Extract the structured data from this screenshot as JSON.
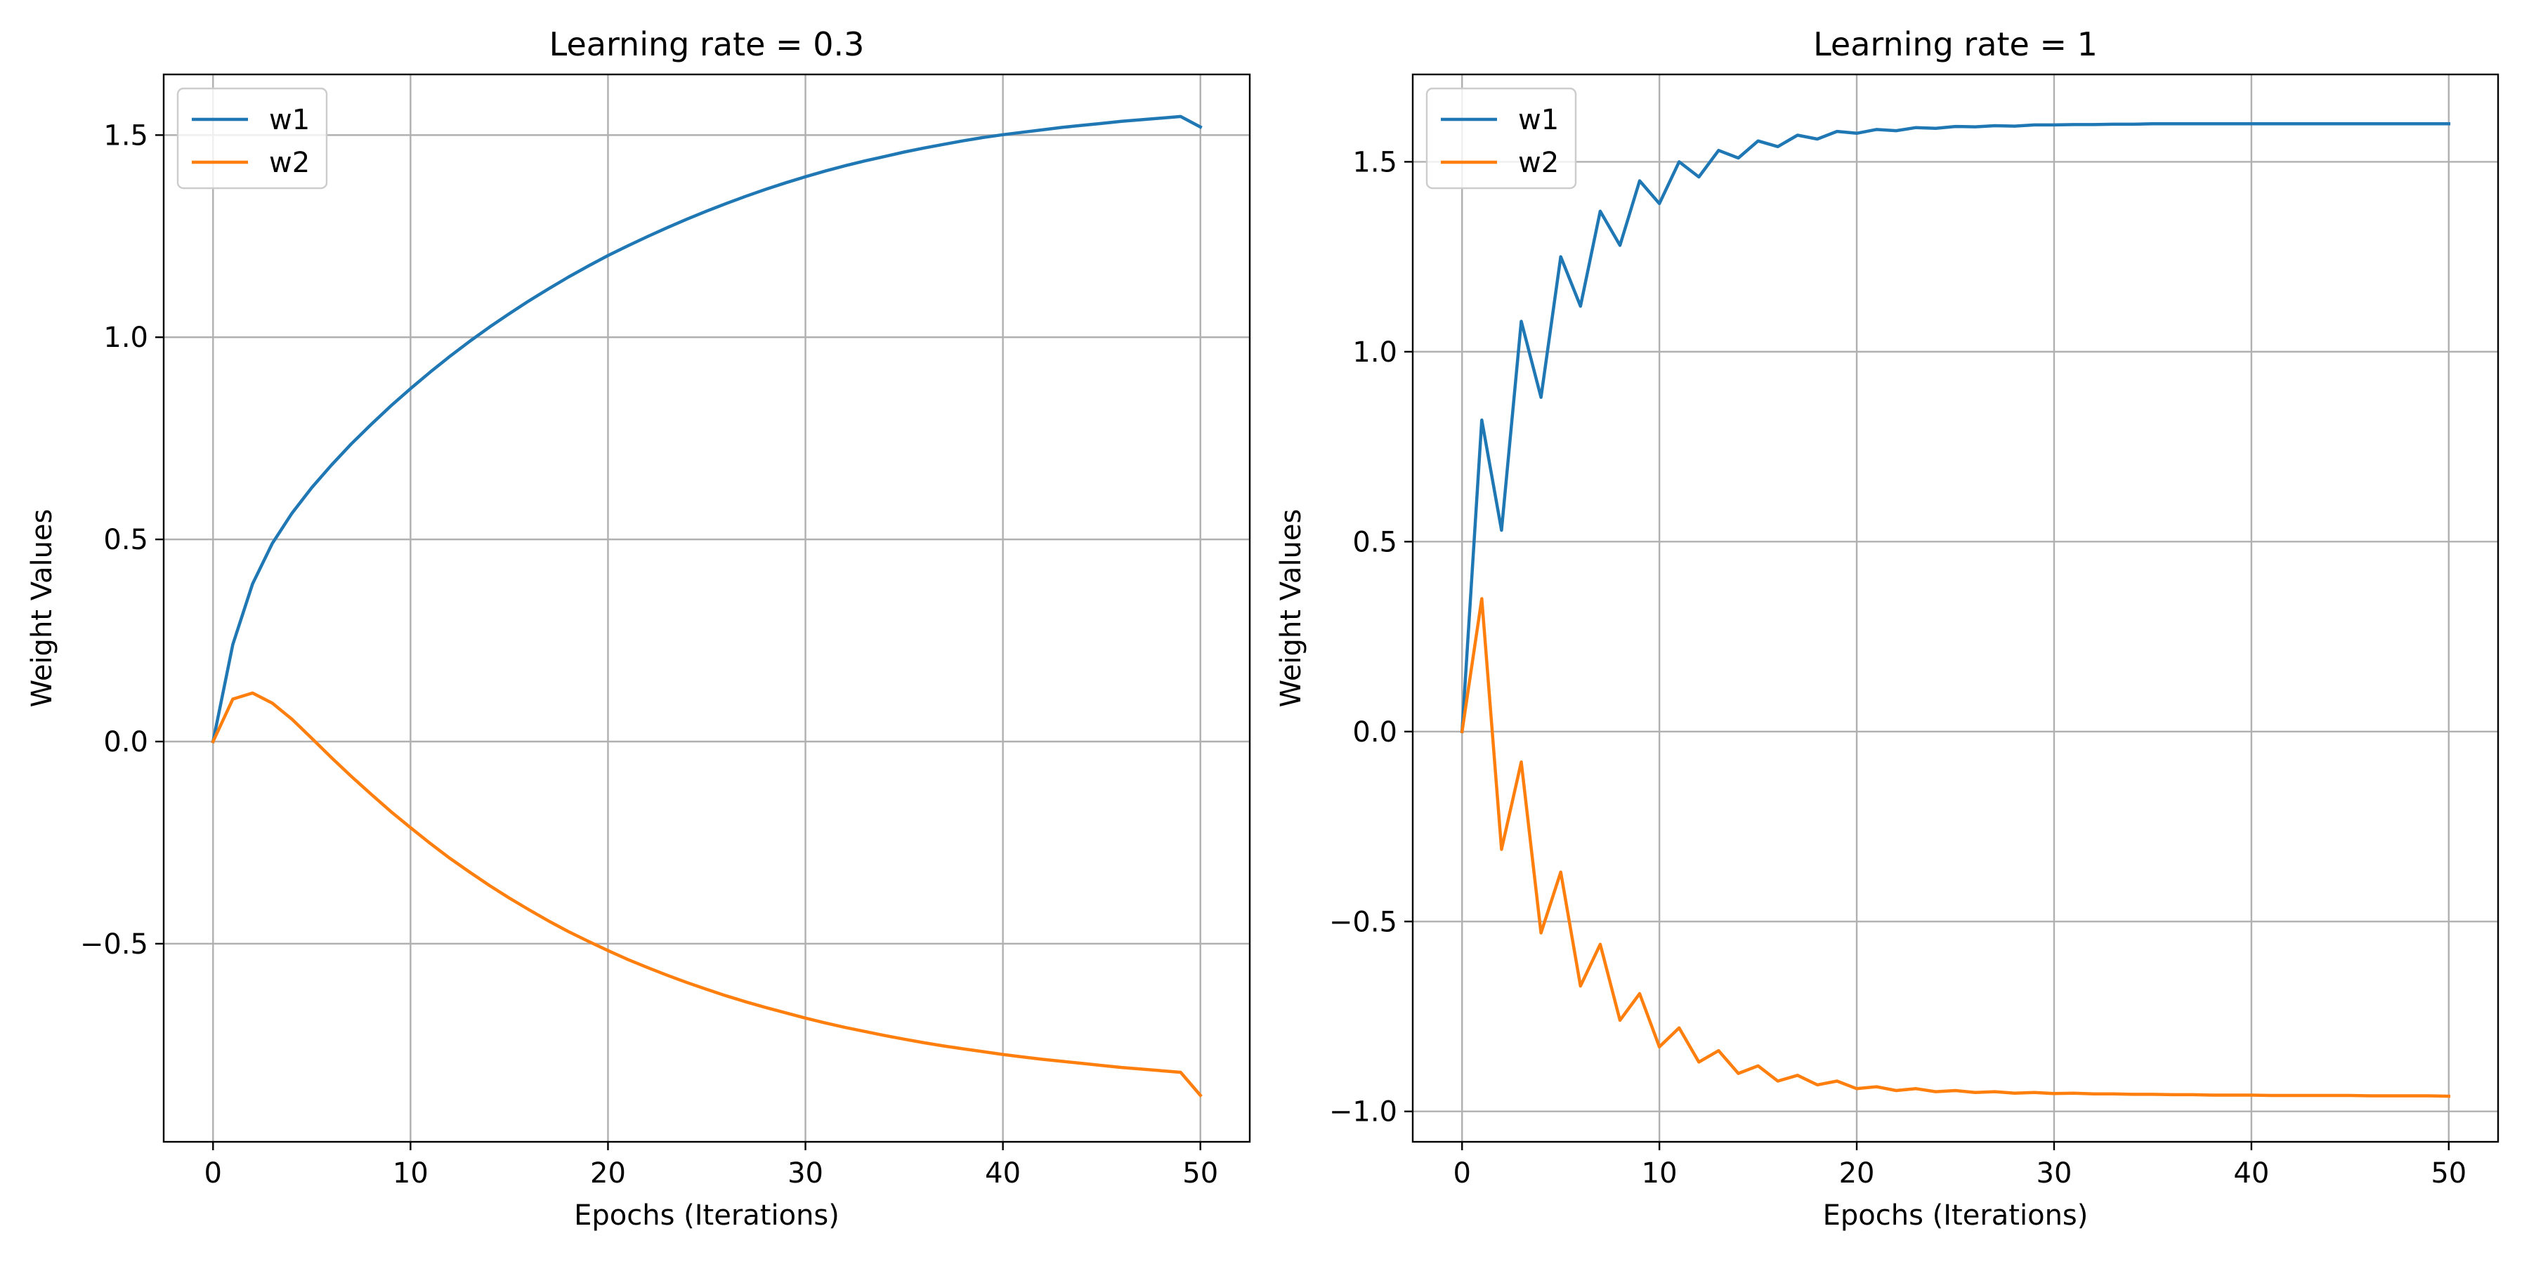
{
  "chart_data": [
    {
      "type": "line",
      "title": "Learning rate = 0.3",
      "xlabel": "Epochs (Iterations)",
      "ylabel": "Weight Values",
      "xlim": [
        -2.5,
        52.5
      ],
      "ylim": [
        -0.99,
        1.65
      ],
      "xticks": [
        0,
        10,
        20,
        30,
        40,
        50
      ],
      "xtick_labels": [
        "0",
        "10",
        "20",
        "30",
        "40",
        "50"
      ],
      "yticks": [
        -0.5,
        0.0,
        0.5,
        1.0,
        1.5
      ],
      "ytick_labels": [
        "−0.5",
        "0.0",
        "0.5",
        "1.0",
        "1.5"
      ],
      "grid": true,
      "legend_position": "top-left",
      "x": [
        0,
        1,
        2,
        3,
        4,
        5,
        6,
        7,
        8,
        9,
        10,
        11,
        12,
        13,
        14,
        15,
        16,
        17,
        18,
        19,
        20,
        21,
        22,
        23,
        24,
        25,
        26,
        27,
        28,
        29,
        30,
        31,
        32,
        33,
        34,
        35,
        36,
        37,
        38,
        39,
        40,
        41,
        42,
        43,
        44,
        45,
        46,
        47,
        48,
        49,
        50
      ],
      "series": [
        {
          "name": "w1",
          "color": "#1f77b4",
          "values": [
            0.0,
            0.24,
            0.39,
            0.49,
            0.565,
            0.628,
            0.684,
            0.736,
            0.784,
            0.83,
            0.873,
            0.914,
            0.953,
            0.99,
            1.025,
            1.058,
            1.09,
            1.12,
            1.149,
            1.176,
            1.202,
            1.226,
            1.249,
            1.271,
            1.292,
            1.312,
            1.331,
            1.349,
            1.366,
            1.382,
            1.397,
            1.411,
            1.424,
            1.436,
            1.447,
            1.458,
            1.468,
            1.477,
            1.486,
            1.494,
            1.501,
            1.507,
            1.513,
            1.519,
            1.524,
            1.529,
            1.534,
            1.538,
            1.542,
            1.546,
            1.52
          ]
        },
        {
          "name": "w2",
          "color": "#ff7f0e",
          "values": [
            0.0,
            0.105,
            0.12,
            0.095,
            0.055,
            0.008,
            -0.04,
            -0.086,
            -0.13,
            -0.173,
            -0.213,
            -0.252,
            -0.289,
            -0.323,
            -0.356,
            -0.387,
            -0.416,
            -0.444,
            -0.47,
            -0.494,
            -0.517,
            -0.539,
            -0.559,
            -0.578,
            -0.596,
            -0.613,
            -0.629,
            -0.644,
            -0.658,
            -0.671,
            -0.684,
            -0.696,
            -0.707,
            -0.717,
            -0.727,
            -0.736,
            -0.745,
            -0.753,
            -0.76,
            -0.767,
            -0.774,
            -0.78,
            -0.786,
            -0.791,
            -0.796,
            -0.801,
            -0.806,
            -0.81,
            -0.814,
            -0.818,
            -0.875
          ]
        }
      ]
    },
    {
      "type": "line",
      "title": "Learning rate = 1",
      "xlabel": "Epochs (Iterations)",
      "ylabel": "Weight Values",
      "xlim": [
        -2.5,
        52.5
      ],
      "ylim": [
        -1.08,
        1.73
      ],
      "xticks": [
        0,
        10,
        20,
        30,
        40,
        50
      ],
      "xtick_labels": [
        "0",
        "10",
        "20",
        "30",
        "40",
        "50"
      ],
      "yticks": [
        -1.0,
        -0.5,
        0.0,
        0.5,
        1.0,
        1.5
      ],
      "ytick_labels": [
        "−1.0",
        "−0.5",
        "0.0",
        "0.5",
        "1.0",
        "1.5"
      ],
      "grid": true,
      "legend_position": "top-left",
      "x": [
        0,
        1,
        2,
        3,
        4,
        5,
        6,
        7,
        8,
        9,
        10,
        11,
        12,
        13,
        14,
        15,
        16,
        17,
        18,
        19,
        20,
        21,
        22,
        23,
        24,
        25,
        26,
        27,
        28,
        29,
        30,
        31,
        32,
        33,
        34,
        35,
        36,
        37,
        38,
        39,
        40,
        41,
        42,
        43,
        44,
        45,
        46,
        47,
        48,
        49,
        50
      ],
      "series": [
        {
          "name": "w1",
          "color": "#1f77b4",
          "values": [
            0.0,
            0.82,
            0.53,
            1.08,
            0.88,
            1.25,
            1.12,
            1.37,
            1.28,
            1.45,
            1.39,
            1.5,
            1.46,
            1.53,
            1.51,
            1.555,
            1.54,
            1.57,
            1.56,
            1.58,
            1.575,
            1.585,
            1.582,
            1.59,
            1.588,
            1.593,
            1.592,
            1.595,
            1.594,
            1.597,
            1.597,
            1.598,
            1.598,
            1.599,
            1.599,
            1.6,
            1.6,
            1.6,
            1.6,
            1.6,
            1.6,
            1.6,
            1.6,
            1.6,
            1.6,
            1.6,
            1.6,
            1.6,
            1.6,
            1.6,
            1.6
          ]
        },
        {
          "name": "w2",
          "color": "#ff7f0e",
          "values": [
            0.0,
            0.35,
            -0.31,
            -0.08,
            -0.53,
            -0.37,
            -0.67,
            -0.56,
            -0.76,
            -0.69,
            -0.83,
            -0.78,
            -0.87,
            -0.84,
            -0.9,
            -0.88,
            -0.92,
            -0.905,
            -0.93,
            -0.92,
            -0.94,
            -0.935,
            -0.945,
            -0.94,
            -0.948,
            -0.945,
            -0.95,
            -0.948,
            -0.952,
            -0.95,
            -0.953,
            -0.952,
            -0.954,
            -0.954,
            -0.955,
            -0.955,
            -0.956,
            -0.956,
            -0.957,
            -0.957,
            -0.957,
            -0.958,
            -0.958,
            -0.958,
            -0.958,
            -0.958,
            -0.959,
            -0.959,
            -0.959,
            -0.959,
            -0.96
          ]
        }
      ]
    }
  ]
}
